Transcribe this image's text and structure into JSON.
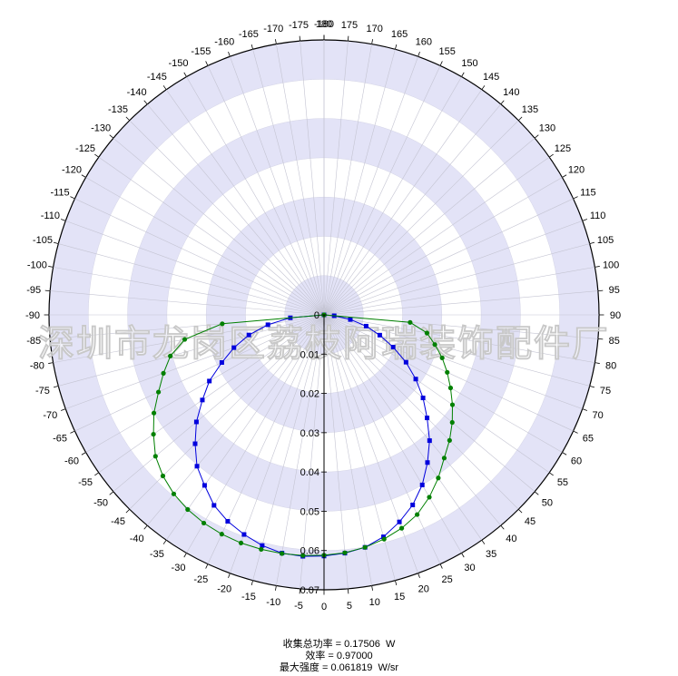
{
  "chart_data": {
    "type": "polar-line",
    "angle_ticks": [
      -180,
      -175,
      -170,
      -165,
      -160,
      -155,
      -150,
      -145,
      -140,
      -135,
      -130,
      -125,
      -120,
      -115,
      -110,
      -105,
      -100,
      -95,
      -90,
      -85,
      -80,
      -75,
      -70,
      -65,
      -60,
      -55,
      -50,
      -45,
      -40,
      -35,
      -30,
      -25,
      -20,
      -15,
      -10,
      -5,
      0,
      5,
      10,
      15,
      20,
      25,
      30,
      35,
      40,
      45,
      50,
      55,
      60,
      65,
      70,
      75,
      80,
      85,
      90,
      95,
      100,
      105,
      110,
      115,
      120,
      125,
      130,
      135,
      140,
      145,
      150,
      155,
      160,
      165,
      170,
      175,
      180
    ],
    "angle_range_deg": [
      -180,
      180
    ],
    "angle_zero_direction": "bottom",
    "radial_ticks": [
      "0",
      "0.01",
      "0.02",
      "0.03",
      "0.04",
      "0.05",
      "0.06",
      "0.07"
    ],
    "radial_range": [
      0,
      0.07
    ],
    "bands": "alternating lavender and white rings",
    "grid": true,
    "series": [
      {
        "color": "#0000dd",
        "marker": "square",
        "points": [
          [
            -90,
            0.0
          ],
          [
            -85,
            0.0086
          ],
          [
            -80,
            0.0145
          ],
          [
            -75,
            0.0198
          ],
          [
            -70,
            0.0244
          ],
          [
            -65,
            0.0287
          ],
          [
            -60,
            0.0337
          ],
          [
            -55,
            0.0378
          ],
          [
            -50,
            0.0424
          ],
          [
            -45,
            0.0464
          ],
          [
            -40,
            0.0503
          ],
          [
            -35,
            0.053
          ],
          [
            -30,
            0.056
          ],
          [
            -25,
            0.058
          ],
          [
            -20,
            0.0595
          ],
          [
            -15,
            0.0608
          ],
          [
            -10,
            0.0616
          ],
          [
            -5,
            0.0617
          ],
          [
            0,
            0.0614
          ],
          [
            5,
            0.0609
          ],
          [
            10,
            0.0601
          ],
          [
            15,
            0.0585
          ],
          [
            20,
            0.0561
          ],
          [
            25,
            0.0534
          ],
          [
            30,
            0.05
          ],
          [
            35,
            0.0459
          ],
          [
            40,
            0.0418
          ],
          [
            45,
            0.0371
          ],
          [
            50,
            0.0329
          ],
          [
            55,
            0.0285
          ],
          [
            60,
            0.0241
          ],
          [
            65,
            0.0194
          ],
          [
            70,
            0.0151
          ],
          [
            75,
            0.0111
          ],
          [
            80,
            0.0068
          ],
          [
            85,
            0.0026
          ],
          [
            90,
            0.0
          ]
        ]
      },
      {
        "color": "#008000",
        "marker": "circle",
        "points": [
          [
            -90,
            0.0
          ],
          [
            -85,
            0.026
          ],
          [
            -80,
            0.036
          ],
          [
            -75,
            0.0405
          ],
          [
            -70,
            0.0435
          ],
          [
            -65,
            0.0465
          ],
          [
            -60,
            0.05
          ],
          [
            -55,
            0.053
          ],
          [
            -50,
            0.056
          ],
          [
            -45,
            0.058
          ],
          [
            -40,
            0.0595
          ],
          [
            -35,
            0.0605
          ],
          [
            -30,
            0.0612
          ],
          [
            -25,
            0.0616
          ],
          [
            -20,
            0.0618
          ],
          [
            -15,
            0.0618
          ],
          [
            -10,
            0.0617
          ],
          [
            -5,
            0.0615
          ],
          [
            0,
            0.0612
          ],
          [
            5,
            0.0608
          ],
          [
            10,
            0.0601
          ],
          [
            15,
            0.0591
          ],
          [
            20,
            0.0578
          ],
          [
            25,
            0.0561
          ],
          [
            30,
            0.0536
          ],
          [
            35,
            0.0507
          ],
          [
            40,
            0.0476
          ],
          [
            45,
            0.0452
          ],
          [
            50,
            0.0426
          ],
          [
            55,
            0.0399
          ],
          [
            60,
            0.0372
          ],
          [
            65,
            0.0346
          ],
          [
            70,
            0.032
          ],
          [
            75,
            0.0292
          ],
          [
            80,
            0.0266
          ],
          [
            85,
            0.022
          ],
          [
            90,
            0.0
          ]
        ]
      }
    ],
    "watermark": "深圳市龙岗区荔枝阿瑞装饰配件厂"
  },
  "summary": {
    "line1": "收集总功率 = 0.17506  W",
    "line2": "效率 = 0.97000",
    "line3": "最大强度 = 0.061819  W/sr"
  }
}
